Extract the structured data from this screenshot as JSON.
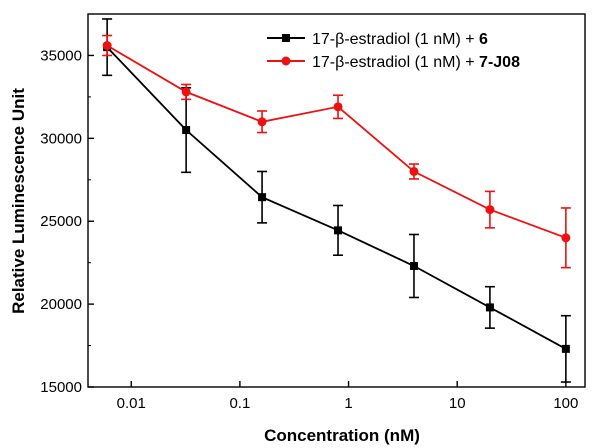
{
  "chart_data": {
    "type": "line",
    "xlabel": "Concentration (nM)",
    "ylabel": "Relative Luminescence Unit",
    "x_scale": "log",
    "xlim": [
      0.004,
      150
    ],
    "ylim": [
      15000,
      37500
    ],
    "x_ticks": [
      0.01,
      0.1,
      1,
      10,
      100
    ],
    "x_tick_labels": [
      "0.01",
      "0.1",
      "1",
      "10",
      "100"
    ],
    "y_ticks": [
      15000,
      20000,
      25000,
      30000,
      35000
    ],
    "y_tick_labels": [
      "15000",
      "20000",
      "25000",
      "30000",
      "35000"
    ],
    "grid": false,
    "legend_position": "top-right",
    "series": [
      {
        "name": "17-β-estradiol (1 nM) + 6",
        "legend_prefix": "17-β-estradiol (1 nM) + ",
        "legend_compound": "6",
        "color": "#000000",
        "marker": "square",
        "x": [
          0.006,
          0.032,
          0.16,
          0.8,
          4,
          20,
          100
        ],
        "y": [
          35500,
          30500,
          26450,
          24450,
          22300,
          19800,
          17300
        ],
        "error": [
          1700,
          2550,
          1550,
          1500,
          1900,
          1250,
          2000
        ]
      },
      {
        "name": "17-β-estradiol (1 nM) + 7-J08",
        "legend_prefix": "17-β-estradiol (1 nM) + ",
        "legend_compound": "7-J08",
        "color": "#ee1111",
        "marker": "circle",
        "x": [
          0.006,
          0.032,
          0.16,
          0.8,
          4,
          20,
          100
        ],
        "y": [
          35600,
          32800,
          31000,
          31900,
          28000,
          25700,
          24000
        ],
        "error": [
          600,
          450,
          650,
          700,
          450,
          1100,
          1800
        ]
      }
    ]
  }
}
